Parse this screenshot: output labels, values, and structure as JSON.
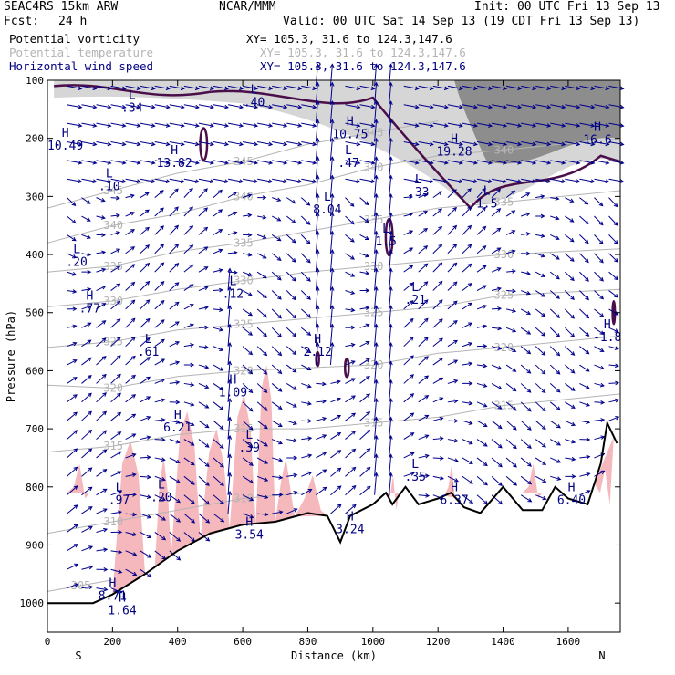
{
  "header": {
    "model": "SEAC4RS 15km ARW",
    "center": "NCAR/MMM",
    "init": "Init: 00 UTC Fri 13 Sep 13",
    "fcst_label": "Fcst:",
    "fcst_value": "24 h",
    "valid": "Valid: 00 UTC Sat 14 Sep 13 (19 CDT Fri 13 Sep 13)"
  },
  "fields": [
    {
      "name": "Potential vorticity",
      "xy": "XY= 105.3, 31.6 to 124.3,147.6",
      "color": "#000000"
    },
    {
      "name": "Potential temperature",
      "xy": "XY= 105.3, 31.6 to 124.3,147.6",
      "color": "#b4b4b4"
    },
    {
      "name": "Horizontal wind speed",
      "xy": "XY= 105.3, 31.6 to 124.3,147.6",
      "color": "#000080"
    }
  ],
  "colors": {
    "pv_contour": "#4a0f4a",
    "theta_contour": "#b4b4b4",
    "wind_vectors": "#00008c",
    "shading": "#f5b8bc",
    "terrain": "#000000",
    "hl_labels": "#000080"
  },
  "chart_data": {
    "type": "cross-section",
    "xlabel": "Distance (km)",
    "ylabel": "Pressure (hPa)",
    "xlim": [
      0,
      1760
    ],
    "ylim": [
      1050,
      100
    ],
    "x_ticks": [
      "0",
      "200",
      "400",
      "600",
      "800",
      "1000",
      "1200",
      "1400",
      "1600"
    ],
    "y_ticks": [
      "100",
      "200",
      "300",
      "400",
      "500",
      "600",
      "700",
      "800",
      "900",
      "1000"
    ],
    "x_end_labels": [
      "S",
      "N"
    ],
    "terrain": [
      [
        0,
        1000
      ],
      [
        140,
        1000
      ],
      [
        200,
        985
      ],
      [
        300,
        950
      ],
      [
        400,
        910
      ],
      [
        500,
        880
      ],
      [
        600,
        865
      ],
      [
        700,
        860
      ],
      [
        800,
        845
      ],
      [
        860,
        850
      ],
      [
        900,
        895
      ],
      [
        930,
        850
      ],
      [
        1000,
        830
      ],
      [
        1040,
        810
      ],
      [
        1060,
        830
      ],
      [
        1100,
        800
      ],
      [
        1140,
        830
      ],
      [
        1200,
        820
      ],
      [
        1240,
        810
      ],
      [
        1280,
        835
      ],
      [
        1330,
        845
      ],
      [
        1400,
        800
      ],
      [
        1460,
        840
      ],
      [
        1520,
        840
      ],
      [
        1560,
        800
      ],
      [
        1600,
        820
      ],
      [
        1660,
        830
      ],
      [
        1700,
        760
      ],
      [
        1720,
        690
      ],
      [
        1750,
        725
      ]
    ],
    "theta_contours": [
      {
        "label": "345",
        "points": [
          [
            0,
            320
          ],
          [
            200,
            290
          ],
          [
            400,
            260
          ],
          [
            600,
            240
          ],
          [
            800,
            210
          ],
          [
            1000,
            190
          ],
          [
            1200,
            170
          ]
        ]
      },
      {
        "label": "340",
        "points": [
          [
            0,
            380
          ],
          [
            200,
            350
          ],
          [
            400,
            330
          ],
          [
            600,
            300
          ],
          [
            800,
            280
          ],
          [
            1000,
            250
          ],
          [
            1200,
            230
          ],
          [
            1400,
            220
          ],
          [
            1760,
            200
          ]
        ]
      },
      {
        "label": "335",
        "points": [
          [
            0,
            430
          ],
          [
            200,
            420
          ],
          [
            400,
            395
          ],
          [
            600,
            380
          ],
          [
            800,
            360
          ],
          [
            1000,
            340
          ],
          [
            1200,
            320
          ],
          [
            1400,
            310
          ],
          [
            1760,
            290
          ]
        ]
      },
      {
        "label": "330",
        "points": [
          [
            0,
            490
          ],
          [
            200,
            480
          ],
          [
            400,
            460
          ],
          [
            600,
            445
          ],
          [
            800,
            430
          ],
          [
            1000,
            420
          ],
          [
            1200,
            410
          ],
          [
            1400,
            400
          ],
          [
            1760,
            390
          ]
        ]
      },
      {
        "label": "325",
        "points": [
          [
            0,
            560
          ],
          [
            200,
            550
          ],
          [
            400,
            530
          ],
          [
            600,
            520
          ],
          [
            800,
            510
          ],
          [
            1000,
            500
          ],
          [
            1200,
            490
          ],
          [
            1400,
            470
          ],
          [
            1760,
            460
          ]
        ]
      },
      {
        "label": "320",
        "points": [
          [
            0,
            625
          ],
          [
            200,
            630
          ],
          [
            400,
            610
          ],
          [
            600,
            600
          ],
          [
            800,
            595
          ],
          [
            1000,
            590
          ],
          [
            1200,
            570
          ],
          [
            1400,
            560
          ],
          [
            1760,
            540
          ]
        ]
      },
      {
        "label": "315",
        "points": [
          [
            0,
            740
          ],
          [
            200,
            730
          ],
          [
            400,
            710
          ],
          [
            600,
            700
          ],
          [
            800,
            700
          ],
          [
            1000,
            690
          ],
          [
            1200,
            680
          ],
          [
            1400,
            660
          ],
          [
            1760,
            640
          ]
        ]
      },
      {
        "label": "310",
        "points": [
          [
            0,
            880
          ],
          [
            200,
            860
          ],
          [
            400,
            840
          ],
          [
            600,
            820
          ],
          [
            800,
            810
          ]
        ]
      },
      {
        "label": "305",
        "points": [
          [
            0,
            980
          ],
          [
            100,
            970
          ],
          [
            200,
            960
          ]
        ]
      }
    ],
    "pv_labels": [
      {
        "type": "L",
        "value": ".34",
        "x": 260,
        "p": 145
      },
      {
        "type": "H",
        "value": "10.49",
        "x": 55,
        "p": 210
      },
      {
        "type": "L",
        "value": ".40",
        "x": 635,
        "p": 135
      },
      {
        "type": "H",
        "value": "10.75",
        "x": 930,
        "p": 190
      },
      {
        "type": "H",
        "value": "13.82",
        "x": 390,
        "p": 240
      },
      {
        "type": "L",
        "value": ".47",
        "x": 925,
        "p": 240
      },
      {
        "type": "H",
        "value": "19.28",
        "x": 1250,
        "p": 220
      },
      {
        "type": "H",
        "value": "16.6",
        "x": 1690,
        "p": 200
      },
      {
        "type": "L",
        "value": ".10",
        "x": 190,
        "p": 280
      },
      {
        "type": "L",
        "value": ".33",
        "x": 1140,
        "p": 290
      },
      {
        "type": "L",
        "value": "8.04",
        "x": 860,
        "p": 320
      },
      {
        "type": "L",
        "value": "1.5",
        "x": 1350,
        "p": 310
      },
      {
        "type": "L",
        "value": "1.5",
        "x": 1040,
        "p": 375
      },
      {
        "type": "L",
        "value": ".20",
        "x": 90,
        "p": 410
      },
      {
        "type": "L",
        "value": ".12",
        "x": 570,
        "p": 465
      },
      {
        "type": "L",
        "value": ".21",
        "x": 1130,
        "p": 475
      },
      {
        "type": "H",
        "value": ".77",
        "x": 130,
        "p": 490
      },
      {
        "type": "H",
        "value": "-1.8",
        "x": 1720,
        "p": 540
      },
      {
        "type": "L",
        "value": ".61",
        "x": 310,
        "p": 565
      },
      {
        "type": "H",
        "value": "2.12",
        "x": 830,
        "p": 565
      },
      {
        "type": "H",
        "value": "1.09",
        "x": 570,
        "p": 635
      },
      {
        "type": "H",
        "value": "6.21",
        "x": 400,
        "p": 695
      },
      {
        "type": "L",
        "value": ".39",
        "x": 620,
        "p": 730
      },
      {
        "type": "L",
        "value": ".35",
        "x": 1130,
        "p": 780
      },
      {
        "type": "L",
        "value": ".97",
        "x": 220,
        "p": 820
      },
      {
        "type": "L",
        "value": ".20",
        "x": 350,
        "p": 815
      },
      {
        "type": "H",
        "value": "6.37",
        "x": 1250,
        "p": 820
      },
      {
        "type": "H",
        "value": "6.40",
        "x": 1610,
        "p": 820
      },
      {
        "type": "H",
        "value": "3.54",
        "x": 620,
        "p": 880
      },
      {
        "type": "H",
        "value": "3.24",
        "x": 930,
        "p": 870
      },
      {
        "type": "H",
        "value": "8.71",
        "x": 200,
        "p": 985
      },
      {
        "type": "H",
        "value": "1.64",
        "x": 230,
        "p": 1010
      }
    ]
  }
}
